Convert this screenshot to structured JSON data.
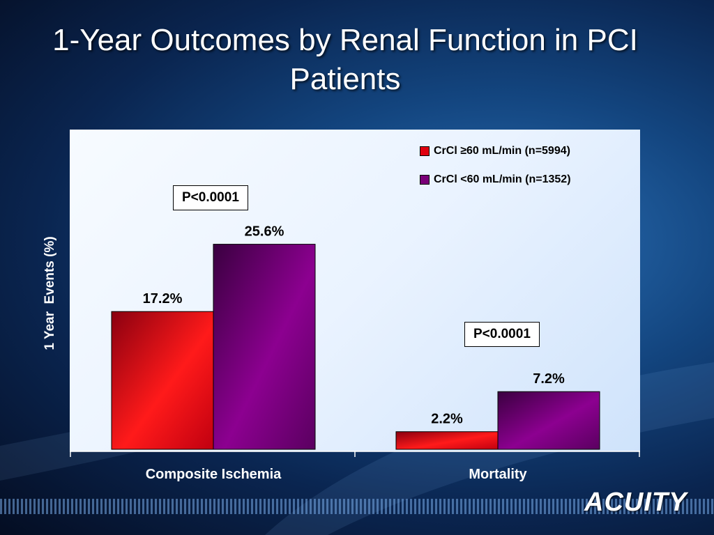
{
  "slide": {
    "title": "1-Year Outcomes by Renal Function in PCI Patients",
    "logo_text": "ACUITY"
  },
  "chart_data": {
    "type": "bar",
    "title": "",
    "xlabel": "",
    "ylabel": "1 Year  Events (%)",
    "ylim": [
      0,
      30
    ],
    "categories": [
      "Composite Ischemia",
      "Mortality"
    ],
    "series": [
      {
        "name": "CrCl ≥60 mL/min (n=5994)",
        "values": [
          17.2,
          2.2
        ],
        "labels": [
          "17.2%",
          "2.2%"
        ],
        "color": "#e0000f"
      },
      {
        "name": "CrCl <60 mL/min (n=1352)",
        "values": [
          25.6,
          7.2
        ],
        "labels": [
          "25.6%",
          "7.2%"
        ],
        "color": "#7a0078"
      }
    ],
    "annotations": [
      "P<0.0001",
      "P<0.0001"
    ],
    "grid": false,
    "legend_position": "top-right"
  },
  "colors": {
    "background": "#0a2550",
    "plot_area": "#eaf3ff",
    "series_1": "#e0000f",
    "series_2": "#7a0078"
  }
}
